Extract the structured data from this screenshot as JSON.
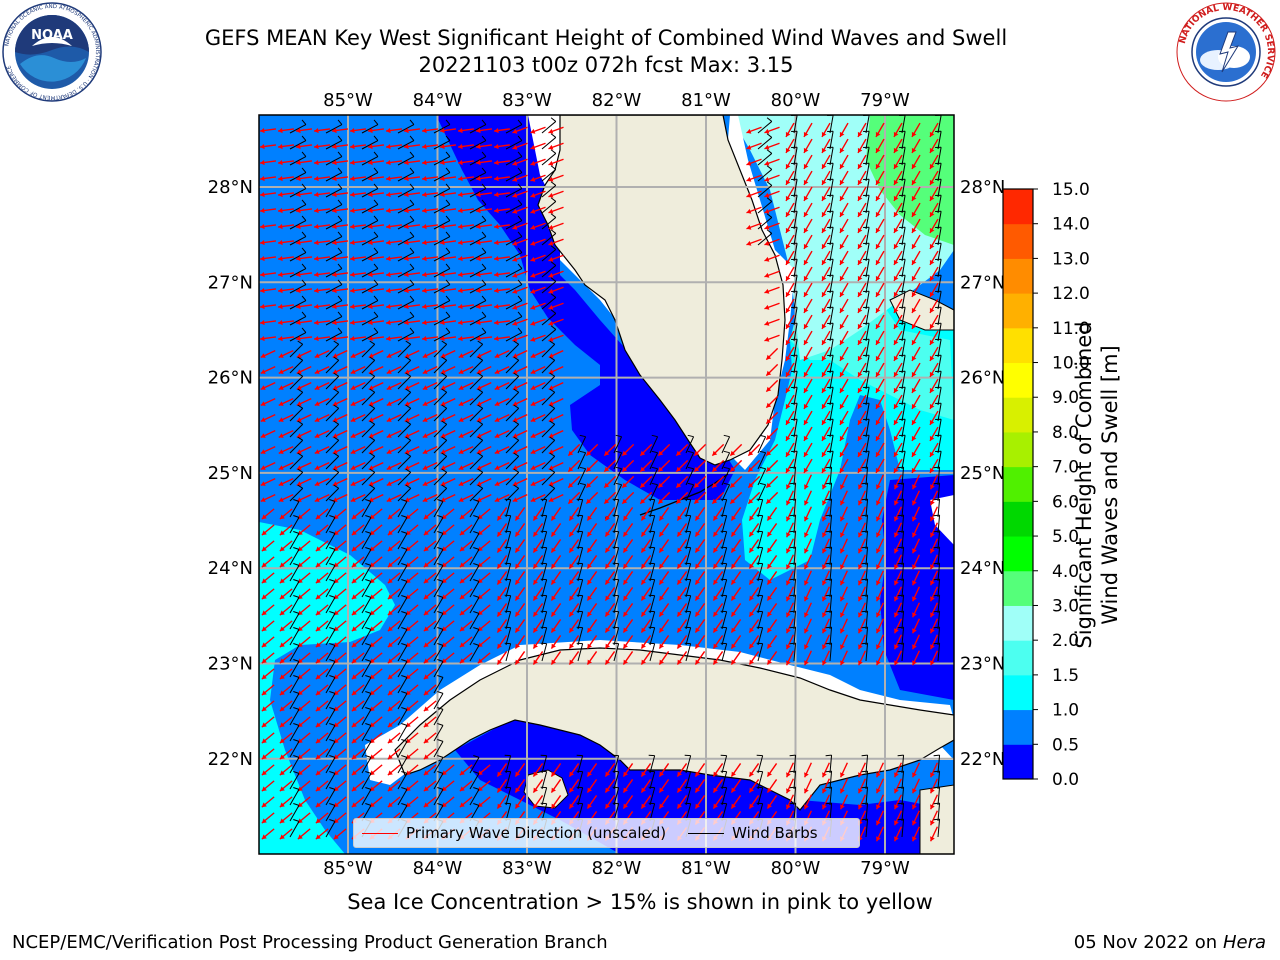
{
  "header": {
    "title_line1": "GEFS MEAN Key West Significant Height of Combined Wind Waves and Swell",
    "title_line2": "20221103 t00z 072h fcst   Max: 3.15"
  },
  "logos": {
    "left": "NOAA",
    "left_ring_text": "NATIONAL OCEANIC AND ATMOSPHERIC ADMINISTRATION · U.S. DEPARTMENT OF COMMERCE",
    "right_ring_text": "NATIONAL WEATHER SERVICE"
  },
  "map": {
    "lon_labels": [
      "85°W",
      "84°W",
      "83°W",
      "82°W",
      "81°W",
      "80°W",
      "79°W"
    ],
    "lon_values": [
      -85,
      -84,
      -83,
      -82,
      -81,
      -80,
      -79
    ],
    "lat_labels": [
      "28°N",
      "27°N",
      "26°N",
      "25°N",
      "24°N",
      "23°N",
      "22°N"
    ],
    "lat_values": [
      28,
      27,
      26,
      25,
      24,
      23,
      22
    ],
    "colors": {
      "land": "#efeddc",
      "grid": "#b0b0b0",
      "wave_arrow": "#ff0000",
      "wind_barb": "#000000"
    }
  },
  "legend": {
    "wave_label": "Primary Wave Direction (unscaled)",
    "wind_label": "Wind Barbs"
  },
  "colorbar": {
    "label_line1": "Significant Height of Combined",
    "label_line2": "Wind Waves and Swell [m]",
    "ticks": [
      "15.0",
      "14.0",
      "13.0",
      "12.0",
      "11.0",
      "10.0",
      "9.0",
      "8.0",
      "7.0",
      "6.0",
      "5.0",
      "4.0",
      "3.0",
      "2.0",
      "1.5",
      "1.0",
      "0.5",
      "0.0"
    ],
    "colors_bottom_to_top": [
      "#0000ff",
      "#0080ff",
      "#00ffff",
      "#4cfff0",
      "#a0fff8",
      "#55ff7a",
      "#00ff00",
      "#00d800",
      "#50f000",
      "#a8f000",
      "#d8f000",
      "#ffff00",
      "#ffe000",
      "#ffb000",
      "#ff8c00",
      "#ff5a00",
      "#ff2800"
    ]
  },
  "footer": {
    "note": "Sea Ice Concentration > 15% is shown in pink to yellow",
    "left": "NCEP/EMC/Verification Post Processing Product Generation Branch",
    "right_date": "05 Nov 2022 on",
    "right_host": "Hera"
  }
}
